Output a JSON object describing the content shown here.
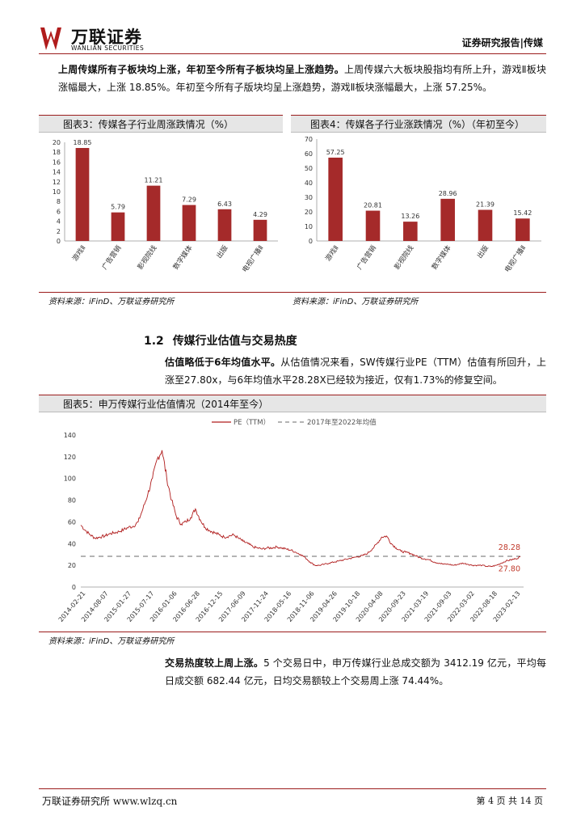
{
  "header": {
    "logo_cn": "万联证券",
    "logo_en": "WANLIAN SECURITIES",
    "report_type": "证券研究报告|传媒"
  },
  "intro": {
    "bold": "上周传媒所有子板块均上涨，年初至今所有子板块均呈上涨趋势。",
    "rest": "上周传媒六大板块股指均有所上升，游戏Ⅱ板块涨幅最大，上涨 18.85%。年初至今所有子版块均呈上涨趋势，游戏Ⅱ板块涨幅最大，上涨 57.25%。"
  },
  "fig3": {
    "title": "图表3：传媒各子行业周涨跌情况（%）",
    "source": "资料来源：iFinD、万联证券研究所"
  },
  "fig4": {
    "title": "图表4：传媒各子行业涨跌情况（%）（年初至今）",
    "source": "资料来源：iFinD、万联证券研究所"
  },
  "section": {
    "number": "1.2",
    "title": "传媒行业估值与交易热度"
  },
  "valuation": {
    "bold": "估值略低于6年均值水平。",
    "rest": "从估值情况来看，SW传媒行业PE（TTM）估值有所回升，上涨至27.80x，与6年均值水平28.28X已经较为接近，仅有1.73%的修复空间。"
  },
  "fig5": {
    "title": "图表5：申万传媒行业估值情况（2014年至今）",
    "source": "资料来源：iFinD、万联证券研究所"
  },
  "trading": {
    "bold": "交易热度较上周上涨。",
    "rest": "5 个交易日中，申万传媒行业总成交额为 3412.19 亿元，平均每日成交额 682.44 亿元，日均交易额较上个交易周上涨 74.44%。"
  },
  "footer": {
    "left": "万联证券研究所 www.wlzq.cn",
    "right": "第 4 页 共 14 页"
  },
  "chart_data": [
    {
      "type": "bar",
      "categories": [
        "游戏Ⅱ",
        "广告营销",
        "影视院线",
        "数字媒体",
        "出版",
        "电视广播Ⅱ"
      ],
      "values": [
        18.85,
        5.79,
        11.21,
        7.29,
        6.43,
        4.29
      ],
      "value_labels": [
        "18.85",
        "5.79",
        "11.21",
        "7.29",
        "6.43",
        "4.29"
      ],
      "ylim": [
        0,
        20
      ],
      "yticks": [
        "0",
        "2",
        "4",
        "6",
        "8",
        "10",
        "12",
        "14",
        "16",
        "18",
        "20"
      ],
      "color": "#a52a2a",
      "grid": false
    },
    {
      "type": "bar",
      "categories": [
        "游戏Ⅱ",
        "广告营销",
        "影视院线",
        "数字媒体",
        "出版",
        "电视广播Ⅱ"
      ],
      "values": [
        57.25,
        20.81,
        13.26,
        28.96,
        21.39,
        15.42
      ],
      "value_labels": [
        "57.25",
        "20.81",
        "13.26",
        "28.96",
        "21.39",
        "15.42"
      ],
      "ylim": [
        0,
        70
      ],
      "yticks": [
        "0",
        "10",
        "20",
        "30",
        "40",
        "50",
        "60",
        "70"
      ],
      "color": "#a52a2a",
      "grid": false
    },
    {
      "type": "line",
      "ylim": [
        0,
        140
      ],
      "yticks": [
        "0",
        "20",
        "40",
        "60",
        "80",
        "100",
        "120",
        "140"
      ],
      "xticks": [
        "2014-02-21",
        "2014-08-07",
        "2015-01-27",
        "2015-07-17",
        "2016-01-06",
        "2016-06-28",
        "2016-12-15",
        "2017-06-09",
        "2017-11-24",
        "2018-05-16",
        "2018-11-06",
        "2019-04-26",
        "2019-10-18",
        "2020-04-08",
        "2020-09-23",
        "2021-03-19",
        "2021-09-03",
        "2022-03-02",
        "2022-08-18",
        "2023-02-13"
      ],
      "legend": [
        "PE（TTM）",
        "2017年至2022年均值"
      ],
      "legend_position": "top",
      "series": [
        {
          "name": "PE（TTM）",
          "color": "#b01c1c",
          "values": [
            57,
            52,
            48,
            45,
            46,
            47,
            49,
            50,
            51,
            53,
            55,
            56,
            60,
            72,
            85,
            100,
            118,
            126,
            100,
            80,
            65,
            58,
            60,
            64,
            72,
            62,
            55,
            52,
            50,
            48,
            46,
            47,
            48,
            45,
            42,
            40,
            37,
            36,
            35,
            36,
            36,
            37,
            36,
            35,
            34,
            32,
            30,
            27,
            23,
            20,
            20,
            21,
            22,
            23,
            24,
            25,
            26,
            27,
            28,
            29,
            31,
            35,
            40,
            46,
            47,
            40,
            36,
            33,
            32,
            31,
            29,
            27,
            26,
            25,
            23,
            22,
            21,
            21,
            20,
            21,
            22,
            21,
            20,
            20,
            20,
            19,
            19,
            20,
            22,
            24,
            25,
            26,
            27.8
          ],
          "end_label": "27.80"
        },
        {
          "name": "2017年至2022年均值",
          "color": "#888888",
          "constant": 28.28,
          "end_label": "28.28"
        }
      ]
    }
  ]
}
